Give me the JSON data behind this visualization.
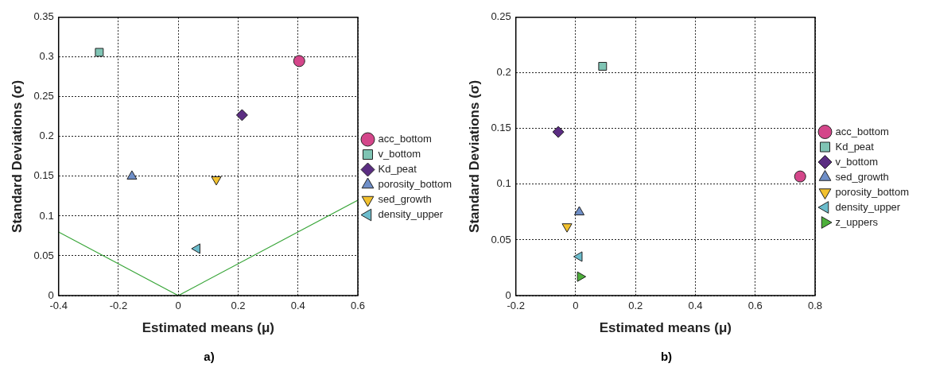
{
  "chart_data": [
    {
      "type": "scatter",
      "xlabel": "Estimated means (μ)",
      "ylabel": "Standard Deviations (σ)",
      "xlim": [
        -0.4,
        0.6
      ],
      "xticks": [
        -0.4,
        -0.2,
        0,
        0.2,
        0.4,
        0.6
      ],
      "ylim": [
        0,
        0.35
      ],
      "yticks": [
        0,
        0.05,
        0.1,
        0.15,
        0.2,
        0.25,
        0.3,
        0.35
      ],
      "grid": true,
      "legend": "right",
      "annotations": [
        "a)"
      ],
      "series": [
        {
          "name": "acc_bottom",
          "color": "#d4468a",
          "marker": "circle",
          "x": [
            0.404
          ],
          "values": [
            0.295
          ]
        },
        {
          "name": "v_bottom",
          "color": "#7fc4b4",
          "marker": "square",
          "x": [
            -0.264
          ],
          "values": [
            0.306
          ]
        },
        {
          "name": "Kd_peat",
          "color": "#5b2d82",
          "marker": "diamond",
          "x": [
            0.213
          ],
          "values": [
            0.227
          ]
        },
        {
          "name": "porosity_bottom",
          "color": "#6f8fc8",
          "marker": "triangle",
          "x": [
            -0.155
          ],
          "values": [
            0.15
          ]
        },
        {
          "name": "sed_growth",
          "color": "#f2c12e",
          "marker": "triangle-down",
          "x": [
            0.127
          ],
          "values": [
            0.146
          ]
        },
        {
          "name": "density_upper",
          "color": "#6bbccc",
          "marker": "triangle-left",
          "x": [
            0.063
          ],
          "values": [
            0.059
          ]
        },
        {
          "type": "line",
          "color": "#3aa63a",
          "marker": "none",
          "x": [
            -0.4,
            0,
            0.6
          ],
          "values": [
            0.08,
            0,
            0.12
          ]
        }
      ]
    },
    {
      "type": "scatter",
      "xlabel": "Estimated means (μ)",
      "ylabel": "Standard Deviations (σ)",
      "xlim": [
        -0.2,
        0.8
      ],
      "xticks": [
        -0.2,
        0,
        0.2,
        0.4,
        0.6,
        0.8
      ],
      "ylim": [
        0,
        0.25
      ],
      "yticks": [
        0,
        0.05,
        0.1,
        0.15,
        0.2,
        0.25
      ],
      "grid": true,
      "legend": "right",
      "annotations": [
        "b)"
      ],
      "series": [
        {
          "name": "acc_bottom",
          "color": "#d4468a",
          "marker": "circle",
          "x": [
            0.75
          ],
          "values": [
            0.107
          ]
        },
        {
          "name": "Kd_peat",
          "color": "#7fc4b4",
          "marker": "square",
          "x": [
            0.09
          ],
          "values": [
            0.206
          ]
        },
        {
          "name": "v_bottom",
          "color": "#5b2d82",
          "marker": "diamond",
          "x": [
            -0.058
          ],
          "values": [
            0.147
          ]
        },
        {
          "name": "sed_growth",
          "color": "#6f8fc8",
          "marker": "triangle",
          "x": [
            0.012
          ],
          "values": [
            0.075
          ]
        },
        {
          "name": "porosity_bottom",
          "color": "#f2c12e",
          "marker": "triangle-down",
          "x": [
            -0.029
          ],
          "values": [
            0.062
          ]
        },
        {
          "name": "density_upper",
          "color": "#6bbccc",
          "marker": "triangle-left",
          "x": [
            0.012
          ],
          "values": [
            0.035
          ]
        },
        {
          "name": "z_uppers",
          "color": "#4caf3a",
          "marker": "triangle-right",
          "x": [
            0.015
          ],
          "values": [
            0.017
          ]
        }
      ]
    }
  ]
}
